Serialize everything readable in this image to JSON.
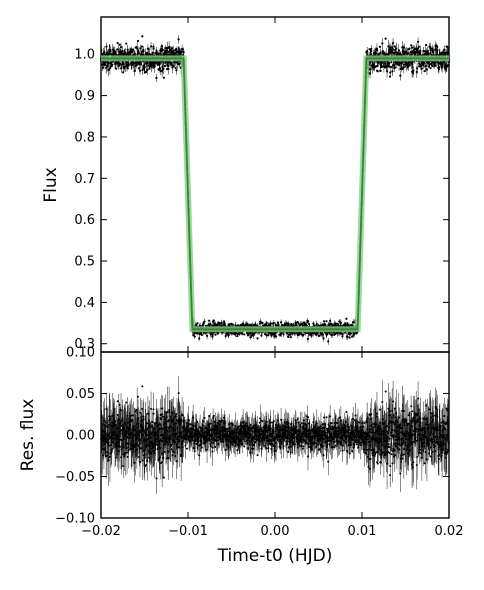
{
  "chart_data": [
    {
      "type": "scatter",
      "panel": "top",
      "title": "",
      "xlabel": "",
      "ylabel": "Flux",
      "xlim": [
        -0.02,
        0.02
      ],
      "ylim": [
        0.28,
        1.09
      ],
      "yticks": [
        0.3,
        0.4,
        0.5,
        0.6,
        0.7,
        0.8,
        0.9,
        1.0
      ],
      "ytick_labels": [
        "0.3",
        "0.4",
        "0.5",
        "0.6",
        "0.7",
        "0.8",
        "0.9",
        "1.0"
      ],
      "grid": false,
      "series": [
        {
          "kind": "points_with_errorbars",
          "color": "#000000",
          "description_values": {
            "out_of_transit_flux": 0.99,
            "in_transit_flux": 0.335,
            "ingress_start": -0.0105,
            "ingress_end": -0.0095,
            "egress_start": 0.0095,
            "egress_end": 0.0105,
            "scatter": 0.012
          }
        },
        {
          "kind": "model_line",
          "color": "#2e8b2e",
          "band_color": "#88cc88",
          "x": [
            -0.02,
            -0.0105,
            -0.0095,
            0.0095,
            0.0105,
            0.02
          ],
          "y": [
            0.99,
            0.99,
            0.335,
            0.335,
            0.99,
            0.99
          ]
        }
      ]
    },
    {
      "type": "scatter",
      "panel": "bottom",
      "title": "",
      "xlabel": "Time-t0 (HJD)",
      "ylabel": "Res. flux",
      "xlim": [
        -0.02,
        0.02
      ],
      "ylim": [
        -0.1,
        0.1
      ],
      "xticks": [
        -0.02,
        -0.01,
        0.0,
        0.01,
        0.02
      ],
      "xtick_labels": [
        "−0.02",
        "−0.01",
        "0.00",
        "0.01",
        "0.02"
      ],
      "yticks": [
        -0.1,
        -0.05,
        0.0,
        0.05,
        0.1
      ],
      "ytick_labels": [
        "−0.10",
        "−0.05",
        "0.00",
        "0.05",
        "0.10"
      ],
      "grid": false,
      "series": [
        {
          "kind": "residuals_with_errorbars",
          "color": "#000000",
          "description_values": {
            "center": 0.0,
            "out_of_transit_scatter": 0.02,
            "in_transit_scatter": 0.012
          }
        }
      ]
    }
  ]
}
